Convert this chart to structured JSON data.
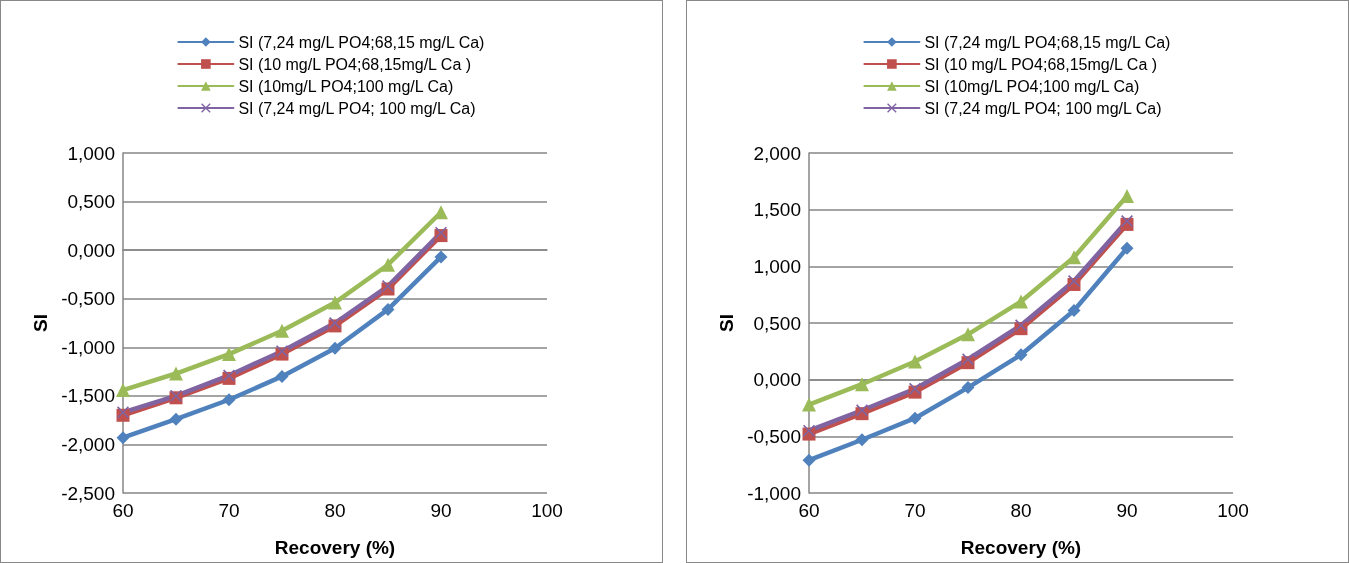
{
  "chart_data": [
    {
      "type": "line",
      "xlabel": "Recovery (%)",
      "ylabel": "SI",
      "x": [
        60,
        65,
        70,
        75,
        80,
        85,
        90
      ],
      "series": [
        {
          "name": "SI (7,24 mg/L PO4;68,15 mg/L Ca)",
          "color": "#4f81bd",
          "marker": "diamond",
          "values": [
            -1.93,
            -1.74,
            -1.54,
            -1.3,
            -1.01,
            -0.61,
            -0.07
          ]
        },
        {
          "name": "SI (10 mg/L PO4;68,15mg/L Ca )",
          "color": "#c0504d",
          "marker": "square",
          "values": [
            -1.7,
            -1.52,
            -1.32,
            -1.07,
            -0.78,
            -0.4,
            0.15
          ]
        },
        {
          "name": "SI (10mg/L PO4;100 mg/L Ca)",
          "color": "#9bbb59",
          "marker": "triangle",
          "values": [
            -1.44,
            -1.27,
            -1.07,
            -0.83,
            -0.54,
            -0.15,
            0.39
          ]
        },
        {
          "name": "SI (7,24 mg/L PO4; 100 mg/L Ca)",
          "color": "#8064a2",
          "marker": "cross",
          "values": [
            -1.67,
            -1.5,
            -1.29,
            -1.04,
            -0.75,
            -0.37,
            0.18
          ]
        }
      ],
      "xlim": [
        60,
        100
      ],
      "xticks": [
        60,
        70,
        80,
        90,
        100
      ],
      "ylim": [
        -2.5,
        1
      ],
      "yticks": [
        {
          "value": -2.5,
          "label": "-2,500"
        },
        {
          "value": -2,
          "label": "-2,000"
        },
        {
          "value": -1.5,
          "label": "-1,500"
        },
        {
          "value": -1,
          "label": "-1,000"
        },
        {
          "value": -0.5,
          "label": "-0,500"
        },
        {
          "value": 0,
          "label": "0,000"
        },
        {
          "value": 0.5,
          "label": "0,500"
        },
        {
          "value": 1,
          "label": "1,000"
        }
      ],
      "grid": "y",
      "legend": "top",
      "line_style": "solid"
    },
    {
      "type": "line",
      "xlabel": "Recovery (%)",
      "ylabel": "SI",
      "x": [
        60,
        65,
        70,
        75,
        80,
        85,
        90
      ],
      "series": [
        {
          "name": "SI (7,24 mg/L PO4;68,15 mg/L Ca)",
          "color": "#4f81bd",
          "marker": "diamond",
          "values": [
            -0.71,
            -0.53,
            -0.34,
            -0.07,
            0.22,
            0.61,
            1.16
          ]
        },
        {
          "name": "SI (10 mg/L PO4;68,15mg/L Ca )",
          "color": "#c0504d",
          "marker": "square",
          "values": [
            -0.48,
            -0.3,
            -0.11,
            0.15,
            0.45,
            0.84,
            1.37
          ]
        },
        {
          "name": "SI (10mg/L PO4;100 mg/L Ca)",
          "color": "#9bbb59",
          "marker": "triangle",
          "values": [
            -0.22,
            -0.04,
            0.16,
            0.4,
            0.69,
            1.08,
            1.62
          ]
        },
        {
          "name": "SI (7,24 mg/L PO4; 100 mg/L Ca)",
          "color": "#8064a2",
          "marker": "cross",
          "values": [
            -0.45,
            -0.27,
            -0.08,
            0.18,
            0.48,
            0.87,
            1.4
          ]
        }
      ],
      "xlim": [
        60,
        100
      ],
      "xticks": [
        60,
        70,
        80,
        90,
        100
      ],
      "ylim": [
        -1,
        2
      ],
      "yticks": [
        {
          "value": -1,
          "label": "-1,000"
        },
        {
          "value": -0.5,
          "label": "-0,500"
        },
        {
          "value": 0,
          "label": "0,000"
        },
        {
          "value": 0.5,
          "label": "0,500"
        },
        {
          "value": 1,
          "label": "1,000"
        },
        {
          "value": 1.5,
          "label": "1,500"
        },
        {
          "value": 2,
          "label": "2,000"
        }
      ],
      "grid": "y",
      "legend": "top",
      "line_style": "solid"
    }
  ]
}
